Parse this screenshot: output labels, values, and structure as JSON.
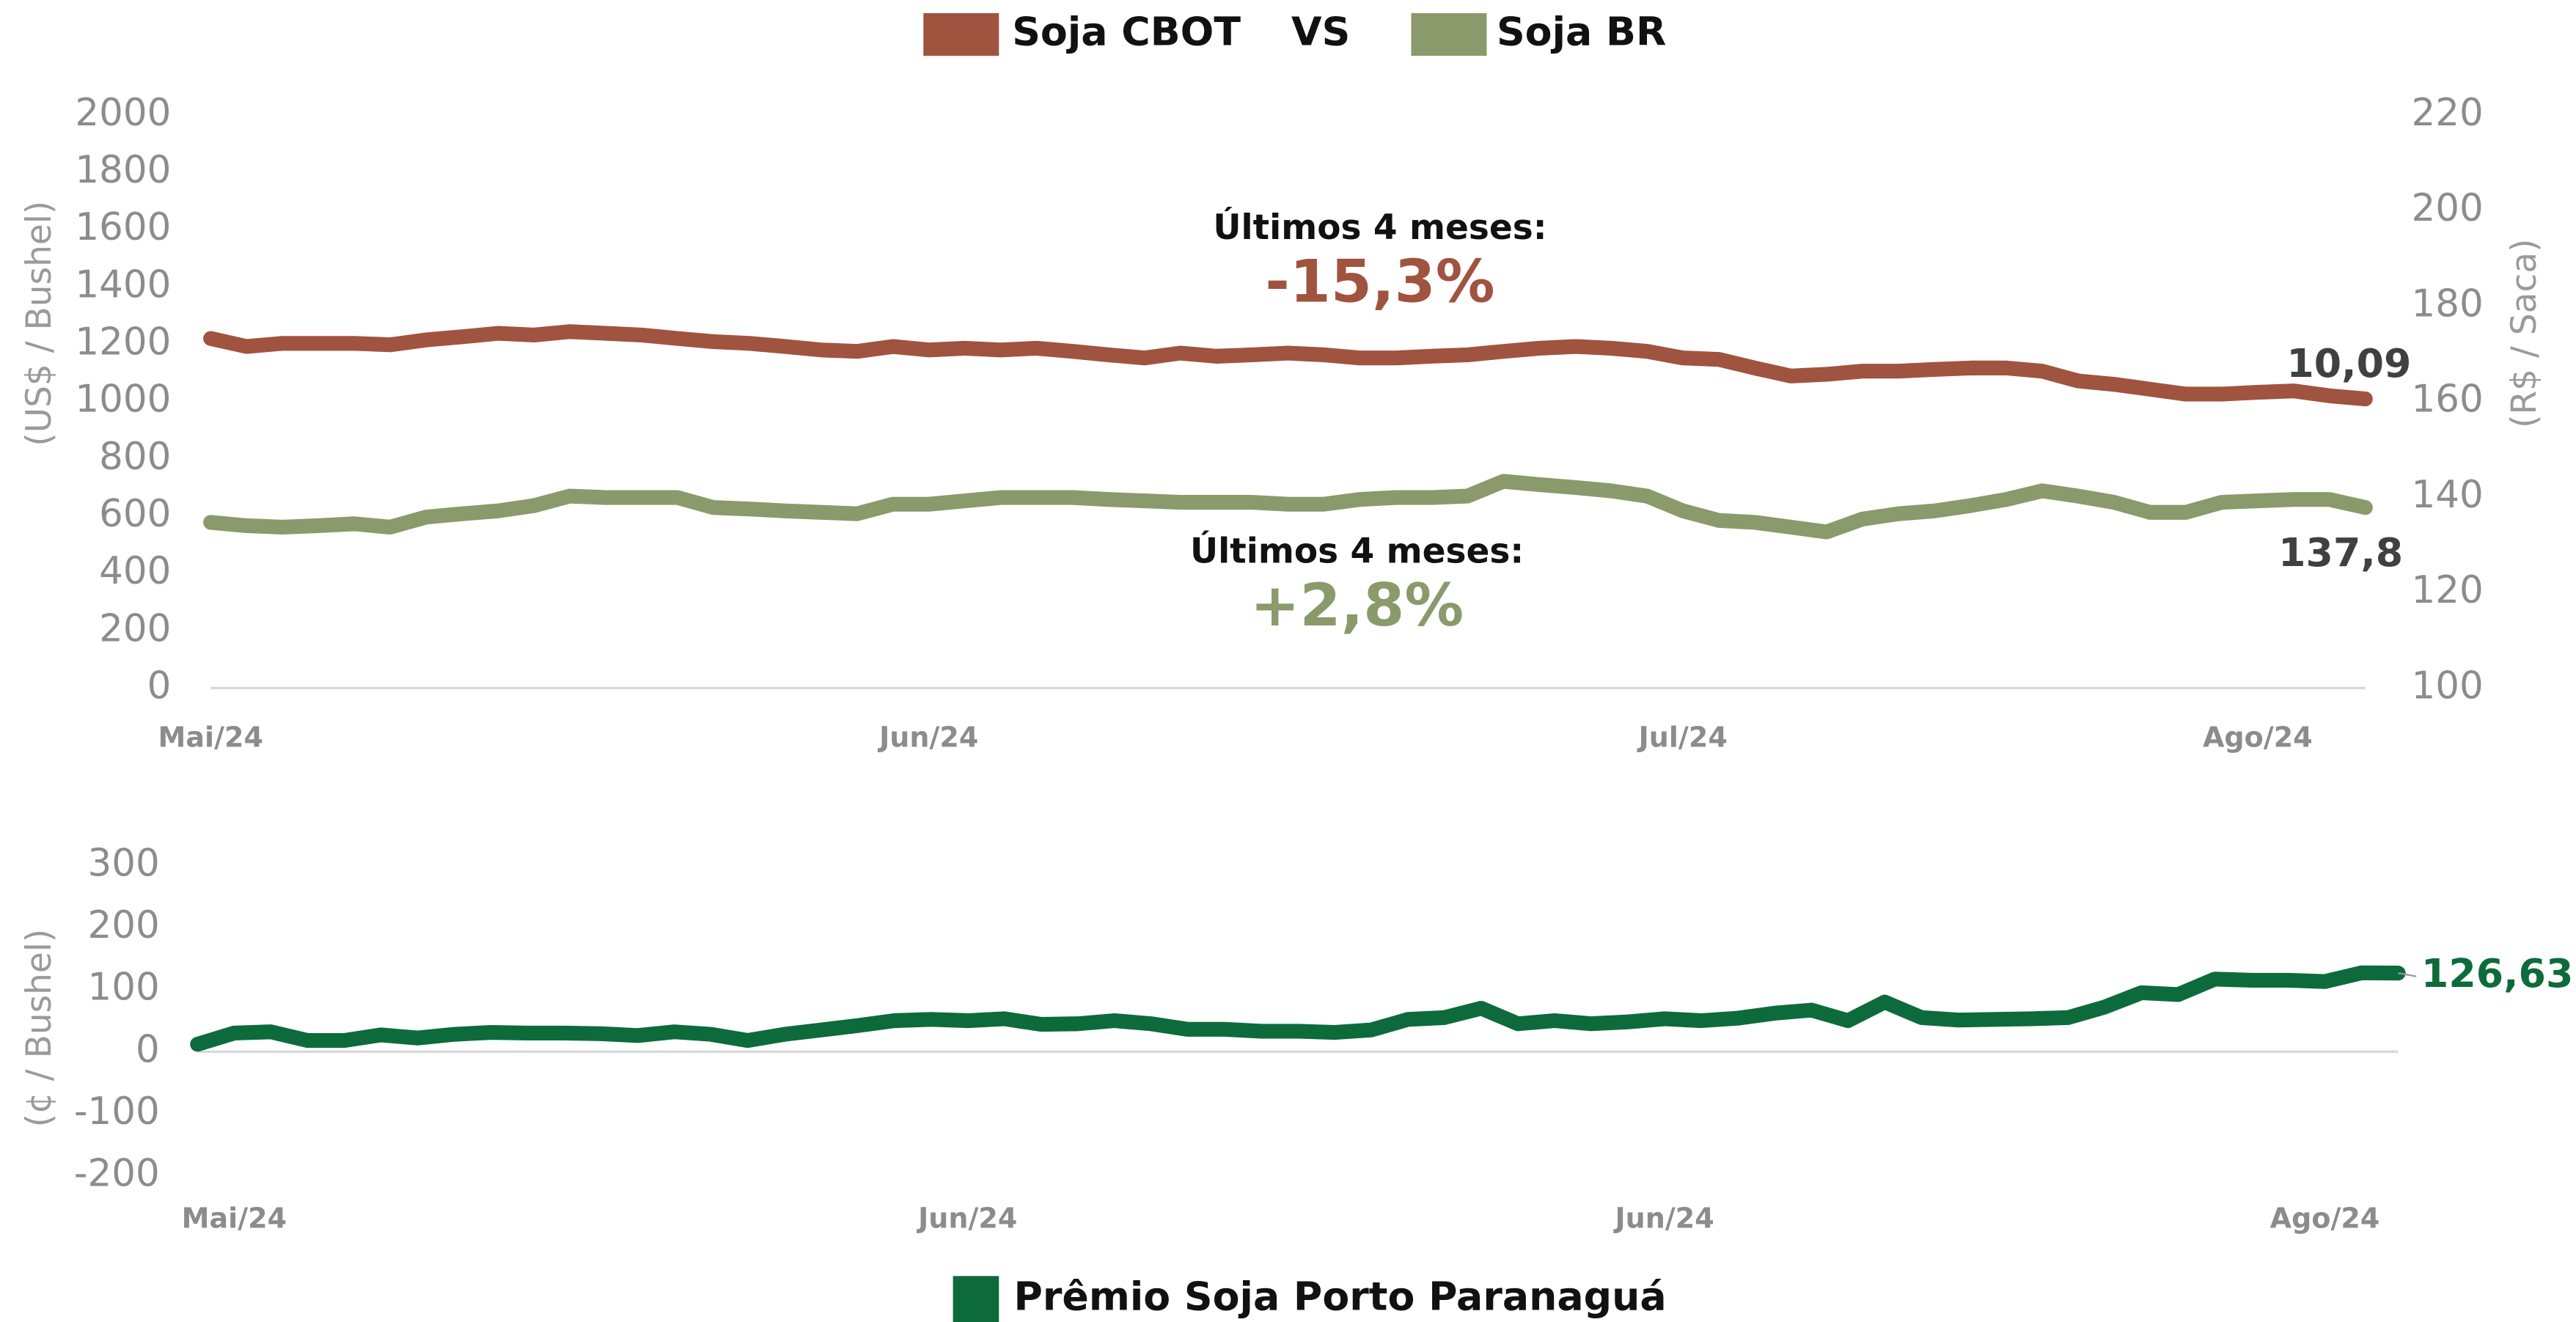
{
  "chart_data": [
    {
      "type": "line",
      "separator": "VS",
      "y_label": "(US$ / Bushel)",
      "y2_label": "(R$ / Saca)",
      "ylim": [
        0,
        2000
      ],
      "yticks": [
        0,
        200,
        400,
        600,
        800,
        1000,
        1200,
        1400,
        1600,
        1800,
        2000
      ],
      "y2lim": [
        100,
        220
      ],
      "y2ticks": [
        100,
        120,
        140,
        160,
        180,
        200,
        220
      ],
      "categories": [
        "Mai/24",
        null,
        null,
        null,
        null,
        null,
        null,
        null,
        null,
        null,
        null,
        null,
        null,
        null,
        null,
        null,
        null,
        null,
        null,
        null,
        "Jun/24",
        null,
        null,
        null,
        null,
        null,
        null,
        null,
        null,
        null,
        null,
        null,
        null,
        null,
        null,
        null,
        null,
        null,
        null,
        null,
        null,
        "Jul/24",
        null,
        null,
        null,
        null,
        null,
        null,
        null,
        null,
        null,
        null,
        null,
        null,
        null,
        null,
        null,
        "Ago/24",
        null,
        null,
        null
      ],
      "series": [
        {
          "name": "Soja CBOT",
          "color": "#a0533f",
          "values": [
            1220,
            1192,
            1203,
            1203,
            1203,
            1198,
            1215,
            1226,
            1238,
            1232,
            1244,
            1238,
            1232,
            1220,
            1209,
            1203,
            1192,
            1180,
            1175,
            1192,
            1180,
            1186,
            1180,
            1186,
            1175,
            1163,
            1152,
            1169,
            1158,
            1163,
            1169,
            1163,
            1152,
            1152,
            1158,
            1163,
            1175,
            1186,
            1192,
            1186,
            1175,
            1152,
            1147,
            1117,
            1089,
            1095,
            1106,
            1106,
            1112,
            1117,
            1117,
            1106,
            1072,
            1060,
            1043,
            1026,
            1026,
            1032,
            1037,
            1020,
            1009
          ],
          "value_labels": [
            null,
            null,
            null,
            null,
            null,
            null,
            null,
            null,
            null,
            null,
            null,
            null,
            null,
            null,
            null,
            null,
            null,
            null,
            null,
            null,
            null,
            null,
            null,
            null,
            null,
            null,
            null,
            null,
            null,
            null,
            null,
            null,
            null,
            null,
            null,
            null,
            null,
            null,
            null,
            null,
            null,
            null,
            null,
            null,
            null,
            null,
            null,
            null,
            null,
            null,
            null,
            null,
            null,
            null,
            null,
            null,
            null,
            null,
            null,
            null,
            "10,09"
          ]
        },
        {
          "name": "Soja BR",
          "color": "#8a9a6b",
          "axis": "y2",
          "values": [
            134.7,
            134.0,
            133.7,
            134.0,
            134.4,
            133.7,
            135.8,
            136.5,
            137.1,
            138.2,
            140.2,
            139.9,
            139.9,
            139.9,
            137.8,
            137.5,
            137.1,
            136.8,
            136.5,
            138.5,
            138.5,
            139.2,
            139.9,
            139.9,
            139.9,
            139.5,
            139.2,
            138.9,
            138.9,
            138.9,
            138.5,
            138.5,
            139.5,
            139.9,
            139.9,
            140.2,
            143.3,
            142.6,
            142.0,
            141.3,
            140.2,
            137.1,
            135.1,
            134.7,
            133.7,
            132.7,
            135.4,
            136.5,
            137.1,
            138.2,
            139.5,
            141.3,
            140.2,
            138.9,
            136.8,
            136.8,
            138.9,
            139.2,
            139.5,
            139.5,
            137.8
          ],
          "value_labels": [
            null,
            null,
            null,
            null,
            null,
            null,
            null,
            null,
            null,
            null,
            null,
            null,
            null,
            null,
            null,
            null,
            null,
            null,
            null,
            null,
            null,
            null,
            null,
            null,
            null,
            null,
            null,
            null,
            null,
            null,
            null,
            null,
            null,
            null,
            null,
            null,
            null,
            null,
            null,
            null,
            null,
            null,
            null,
            null,
            null,
            null,
            null,
            null,
            null,
            null,
            null,
            null,
            null,
            null,
            null,
            null,
            null,
            null,
            null,
            null,
            "137,8"
          ]
        }
      ],
      "annotations": [
        {
          "text": "Últimos 4 meses:"
        },
        {
          "text": "-15,3%",
          "color": "#a0533f"
        },
        {
          "text": "Últimos 4 meses:"
        },
        {
          "text": "+2,8%",
          "color": "#8a9a6b"
        }
      ]
    },
    {
      "type": "line",
      "y_label": "(¢ / Bushel)",
      "ylim": [
        -200,
        300
      ],
      "yticks": [
        -200,
        -100,
        0,
        100,
        200,
        300
      ],
      "categories": [
        null,
        "Mai/24",
        null,
        null,
        null,
        null,
        null,
        null,
        null,
        null,
        null,
        null,
        null,
        null,
        null,
        null,
        null,
        null,
        null,
        null,
        null,
        "Jun/24",
        null,
        null,
        null,
        null,
        null,
        null,
        null,
        null,
        null,
        null,
        null,
        null,
        null,
        null,
        null,
        null,
        null,
        null,
        "Jun/24",
        null,
        null,
        null,
        null,
        null,
        null,
        null,
        null,
        null,
        null,
        null,
        null,
        null,
        null,
        null,
        null,
        null,
        "Ago/24",
        null,
        null
      ],
      "series": [
        {
          "name": "Prêmio Soja Porto Paranaguá",
          "color": "#0d6b3b",
          "values": [
            12,
            30,
            32,
            18,
            18,
            27,
            22,
            28,
            31,
            30,
            30,
            29,
            26,
            32,
            28,
            18,
            28,
            35,
            42,
            50,
            52,
            50,
            53,
            44,
            45,
            50,
            45,
            36,
            36,
            33,
            33,
            31,
            35,
            52,
            55,
            70,
            45,
            50,
            45,
            48,
            53,
            50,
            54,
            62,
            67,
            50,
            80,
            55,
            51,
            52,
            53,
            55,
            72,
            95,
            92,
            117,
            115,
            115,
            113,
            127,
            126.63
          ],
          "value_labels": [
            null,
            null,
            null,
            null,
            null,
            null,
            null,
            null,
            null,
            null,
            null,
            null,
            null,
            null,
            null,
            null,
            null,
            null,
            null,
            null,
            null,
            null,
            null,
            null,
            null,
            null,
            null,
            null,
            null,
            null,
            null,
            null,
            null,
            null,
            null,
            null,
            null,
            null,
            null,
            null,
            null,
            null,
            null,
            null,
            null,
            null,
            null,
            null,
            null,
            null,
            null,
            null,
            null,
            null,
            null,
            null,
            null,
            null,
            null,
            null,
            "126,63"
          ]
        }
      ]
    }
  ]
}
